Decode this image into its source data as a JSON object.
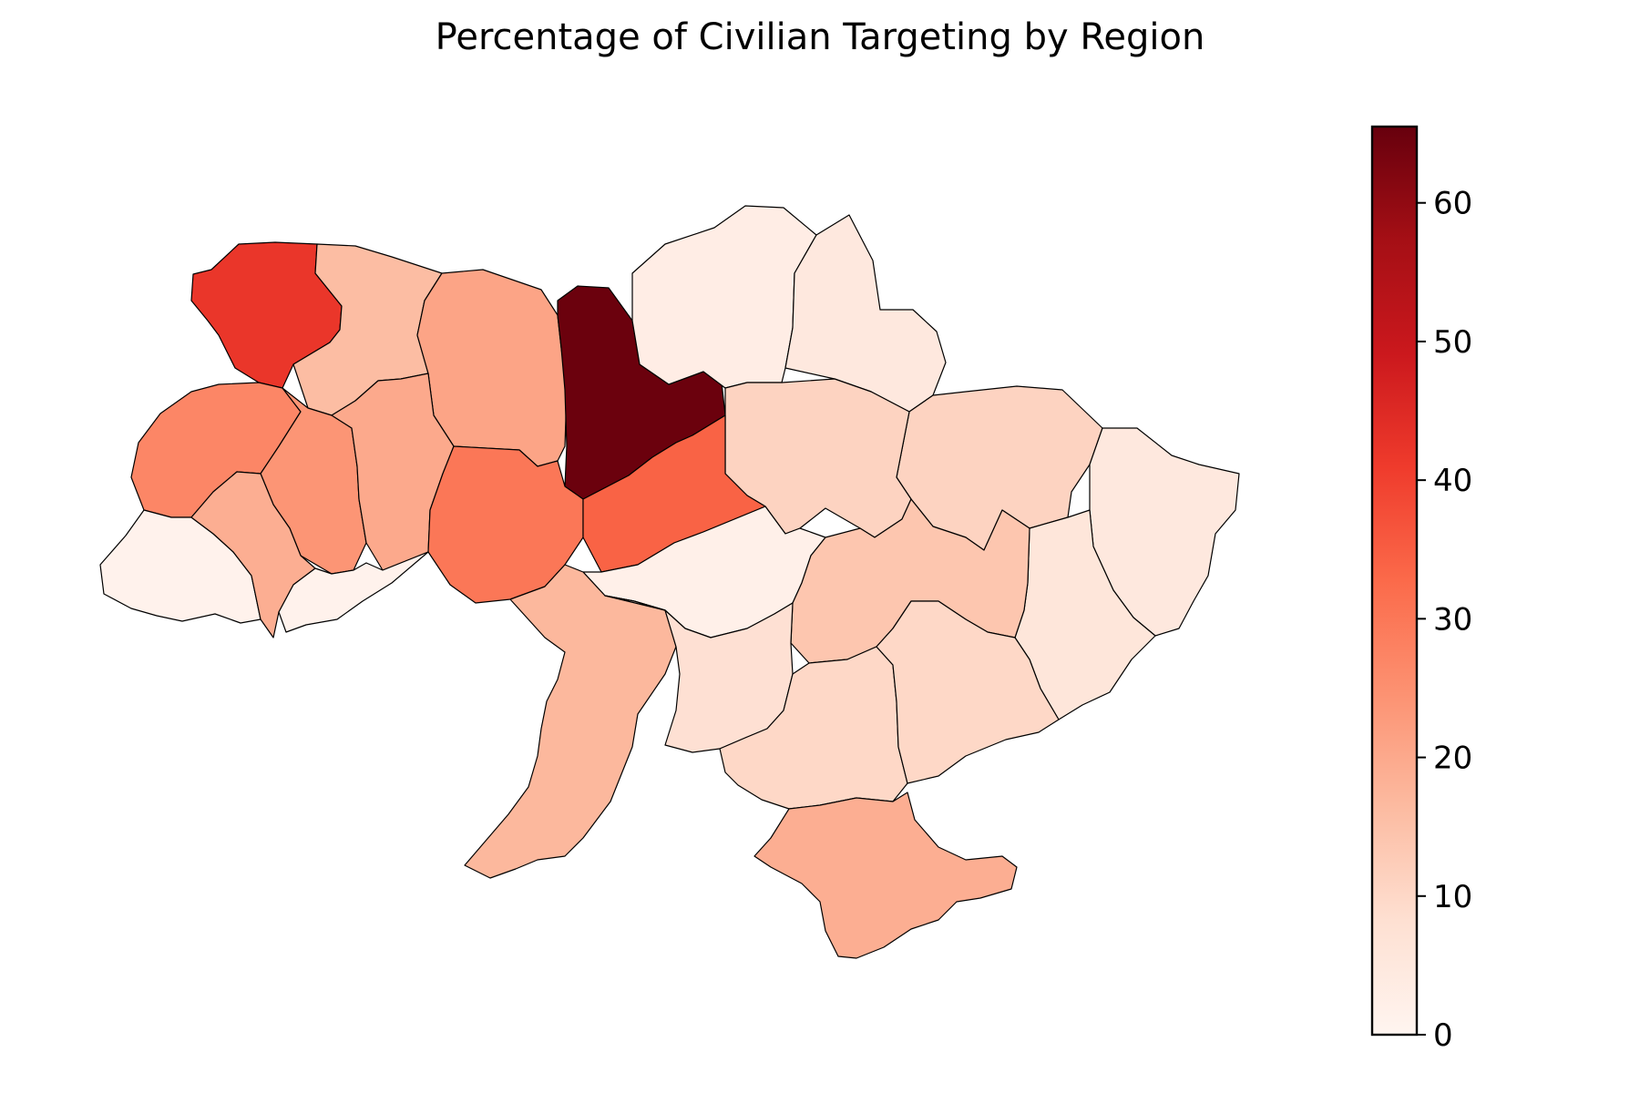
{
  "title": "Percentage of Civilian Targeting by Region",
  "colormap": "Reds",
  "colorbar": {
    "vmin": 0,
    "vmax": 65.5,
    "ticks": [
      0,
      10,
      20,
      30,
      40,
      50,
      60
    ],
    "tick_labels": [
      "0",
      "10",
      "20",
      "30",
      "40",
      "50",
      "60"
    ],
    "stops": [
      "#fff5f0",
      "#fee0d2",
      "#fcbba1",
      "#fc9272",
      "#fb6a4a",
      "#ef3b2c",
      "#cb181d",
      "#a50f15",
      "#67000d"
    ]
  },
  "chart_data": {
    "type": "choropleth",
    "value_unit": "percent",
    "regions": [
      {
        "id": "volyn",
        "value": 42
      },
      {
        "id": "rivne",
        "value": 16
      },
      {
        "id": "zhytomyr",
        "value": 21
      },
      {
        "id": "kyiv",
        "value": 65
      },
      {
        "id": "chernihiv",
        "value": 3
      },
      {
        "id": "sumy",
        "value": 5
      },
      {
        "id": "kharkiv",
        "value": 11
      },
      {
        "id": "poltava",
        "value": 11
      },
      {
        "id": "luhansk",
        "value": 5
      },
      {
        "id": "donetsk",
        "value": 6
      },
      {
        "id": "lviv",
        "value": 27
      },
      {
        "id": "ternopil",
        "value": 24
      },
      {
        "id": "khmelnytskyi",
        "value": 20
      },
      {
        "id": "vinnytsia",
        "value": 30
      },
      {
        "id": "cherkasy",
        "value": 34
      },
      {
        "id": "kirovohrad",
        "value": 2
      },
      {
        "id": "dnipropetrovsk",
        "value": 14
      },
      {
        "id": "zakarpattia",
        "value": 1
      },
      {
        "id": "ivano_frankivsk",
        "value": 19
      },
      {
        "id": "chernivtsi",
        "value": 1
      },
      {
        "id": "odesa",
        "value": 17
      },
      {
        "id": "mykolaiv",
        "value": 8
      },
      {
        "id": "kherson",
        "value": 10
      },
      {
        "id": "zaporizhzhia",
        "value": 10
      },
      {
        "id": "crimea",
        "value": 19
      }
    ]
  }
}
